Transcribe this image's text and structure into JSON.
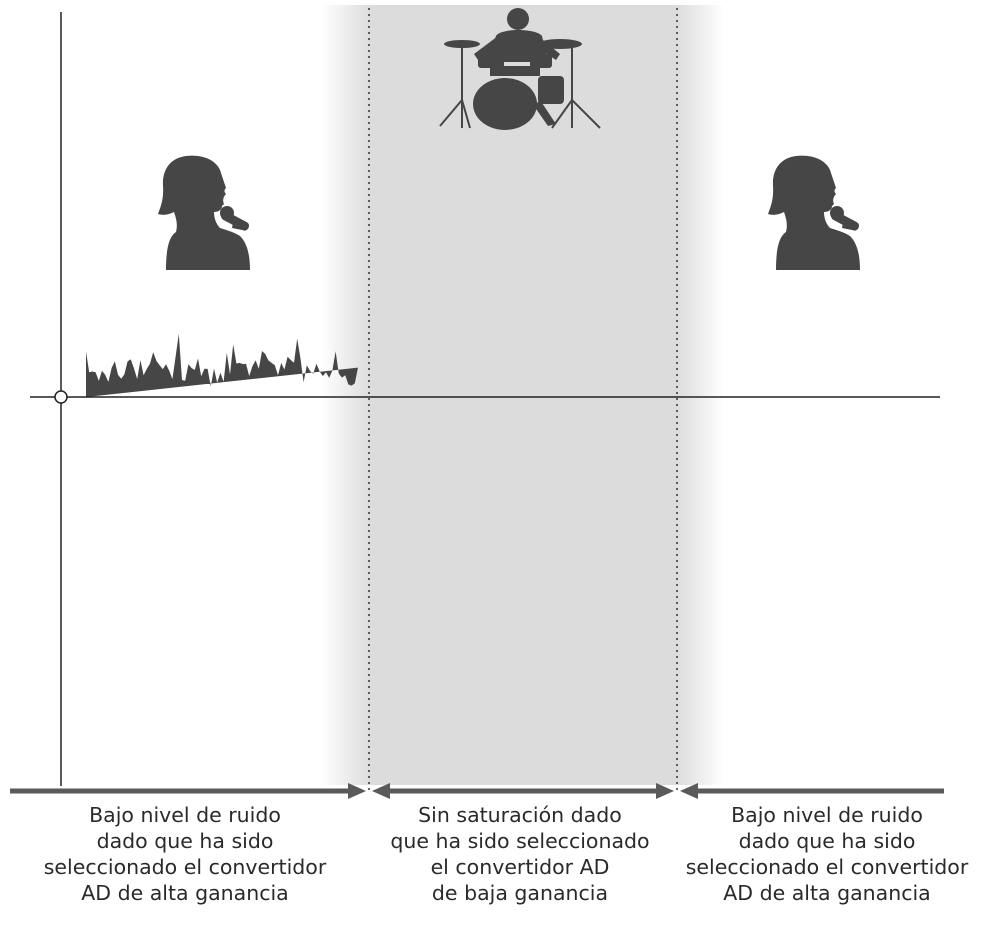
{
  "captions": {
    "left": [
      "Bajo nivel de ruido",
      "dado que ha sido",
      "seleccionado el convertidor",
      "AD de alta ganancia"
    ],
    "middle": [
      "Sin saturación dado",
      "que ha sido seleccionado",
      "el convertidor AD",
      "de baja ganancia"
    ],
    "right": [
      "Bajo nivel de ruido",
      "dado que ha sido",
      "seleccionado el convertidor",
      "AD de alta ganancia"
    ]
  },
  "icons": {
    "left": "singer-icon",
    "middle": "drummer-icon",
    "right": "singer-icon"
  },
  "colors": {
    "waveform": "#464646",
    "highlight": "#dcdcdc",
    "arrow": "#5a5a5a",
    "axis": "#222222",
    "text": "#2a2a2a"
  }
}
